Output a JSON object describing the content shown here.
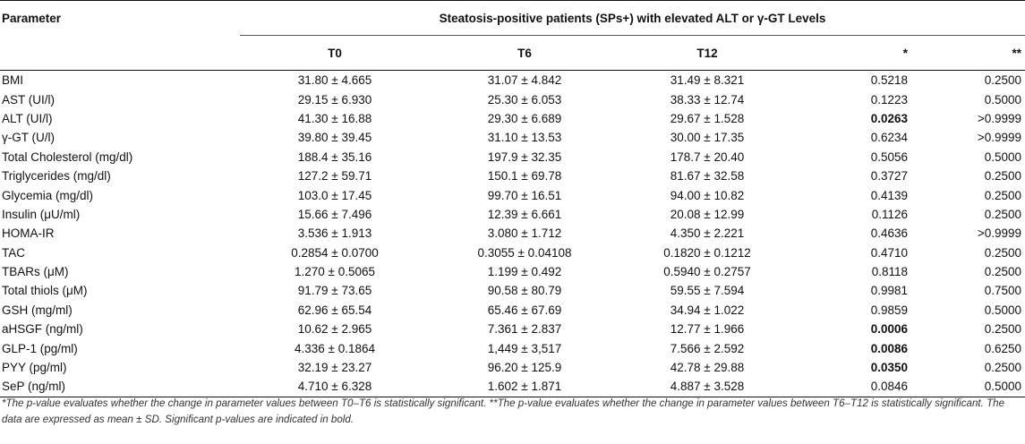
{
  "header": {
    "parameter_label": "Parameter",
    "group_label": "Steatosis-positive patients (SPs+) with elevated ALT or γ-GT Levels",
    "columns": [
      "T0",
      "T6",
      "T12",
      "*",
      "**"
    ]
  },
  "rows": [
    {
      "name": "BMI",
      "t0": "31.80 ± 4.665",
      "t6": "31.07 ± 4.842",
      "t12": "31.49 ± 8.321",
      "p1": "0.5218",
      "p1_bold": false,
      "p2": "0.2500"
    },
    {
      "name": "AST (UI/l)",
      "t0": "29.15 ± 6.930",
      "t6": "25.30 ± 6.053",
      "t12": "38.33 ± 12.74",
      "p1": "0.1223",
      "p1_bold": false,
      "p2": "0.5000"
    },
    {
      "name": "ALT (UI/l)",
      "t0": "41.30 ± 16.88",
      "t6": "29.30 ± 6.689",
      "t12": "29.67 ± 1.528",
      "p1": "0.0263",
      "p1_bold": true,
      "p2": ">0.9999"
    },
    {
      "name": "γ-GT (U/l)",
      "t0": "39.80 ± 39.45",
      "t6": "31.10 ± 13.53",
      "t12": "30.00 ± 17.35",
      "p1": "0.6234",
      "p1_bold": false,
      "p2": ">0.9999"
    },
    {
      "name": "Total Cholesterol (mg/dl)",
      "t0": "188.4 ± 35.16",
      "t6": "197.9 ± 32.35",
      "t12": "178.7 ± 20.40",
      "p1": "0.5056",
      "p1_bold": false,
      "p2": "0.5000"
    },
    {
      "name": "Triglycerides (mg/dl)",
      "t0": "127.2 ± 59.71",
      "t6": "150.1 ± 69.78",
      "t12": "81.67 ± 32.58",
      "p1": "0.3727",
      "p1_bold": false,
      "p2": "0.2500"
    },
    {
      "name": "Glycemia (mg/dl)",
      "t0": "103.0 ± 17.45",
      "t6": "99.70 ± 16.51",
      "t12": "94.00 ± 10.82",
      "p1": "0.4139",
      "p1_bold": false,
      "p2": "0.2500"
    },
    {
      "name": "Insulin (μU/ml)",
      "t0": "15.66 ± 7.496",
      "t6": "12.39 ± 6.661",
      "t12": "20.08 ± 12.99",
      "p1": "0.1126",
      "p1_bold": false,
      "p2": "0.2500"
    },
    {
      "name": "HOMA-IR",
      "t0": "3.536 ± 1.913",
      "t6": "3.080 ± 1.712",
      "t12": "4.350 ± 2.221",
      "p1": "0.4636",
      "p1_bold": false,
      "p2": ">0.9999"
    },
    {
      "name": "TAC",
      "t0": "0.2854 ± 0.0700",
      "t6": "0.3055 ± 0.04108",
      "t12": "0.1820 ± 0.1212",
      "p1": "0.4710",
      "p1_bold": false,
      "p2": "0.2500"
    },
    {
      "name": "TBARs (μM)",
      "t0": "1.270 ± 0.5065",
      "t6": "1.199 ± 0.492",
      "t12": "0.5940 ± 0.2757",
      "p1": "0.8118",
      "p1_bold": false,
      "p2": "0.2500"
    },
    {
      "name": "Total thiols (μM)",
      "t0": "91.79 ± 73.65",
      "t6": "90.58 ± 80.79",
      "t12": "59.55 ± 7.594",
      "p1": "0.9981",
      "p1_bold": false,
      "p2": "0.7500"
    },
    {
      "name": "GSH (mg/ml)",
      "t0": "62.96 ± 65.54",
      "t6": "65.46 ± 67.69",
      "t12": "34.94 ± 1.022",
      "p1": "0.9859",
      "p1_bold": false,
      "p2": "0.5000"
    },
    {
      "name": "aHSGF (ng/ml)",
      "t0": "10.62 ± 2.965",
      "t6": "7.361 ± 2.837",
      "t12": "12.77 ± 1.966",
      "p1": "0.0006",
      "p1_bold": true,
      "p2": "0.2500"
    },
    {
      "name": "GLP-1 (pg/ml)",
      "t0": "4.336 ± 0.1864",
      "t6": "1,449 ± 3,517",
      "t12": "7.566 ± 2.592",
      "p1": "0.0086",
      "p1_bold": true,
      "p2": "0.6250"
    },
    {
      "name": "PYY (pg/ml)",
      "t0": "32.19 ± 23.27",
      "t6": "96.20 ± 125.9",
      "t12": "42.78 ± 29.88",
      "p1": "0.0350",
      "p1_bold": true,
      "p2": "0.2500"
    },
    {
      "name": "SeP (ng/ml)",
      "t0": "4.710 ± 6.328",
      "t6": "1.602 ± 1.871",
      "t12": "4.887 ± 3.528",
      "p1": "0.0846",
      "p1_bold": false,
      "p2": "0.5000"
    }
  ],
  "footnote": "*The p-value evaluates whether the change in parameter values between T0–T6 is statistically significant. **The p-value evaluates whether the change in parameter values between T6–T12 is statistically significant. The data are expressed as mean ± SD. Significant p-values are indicated in bold."
}
